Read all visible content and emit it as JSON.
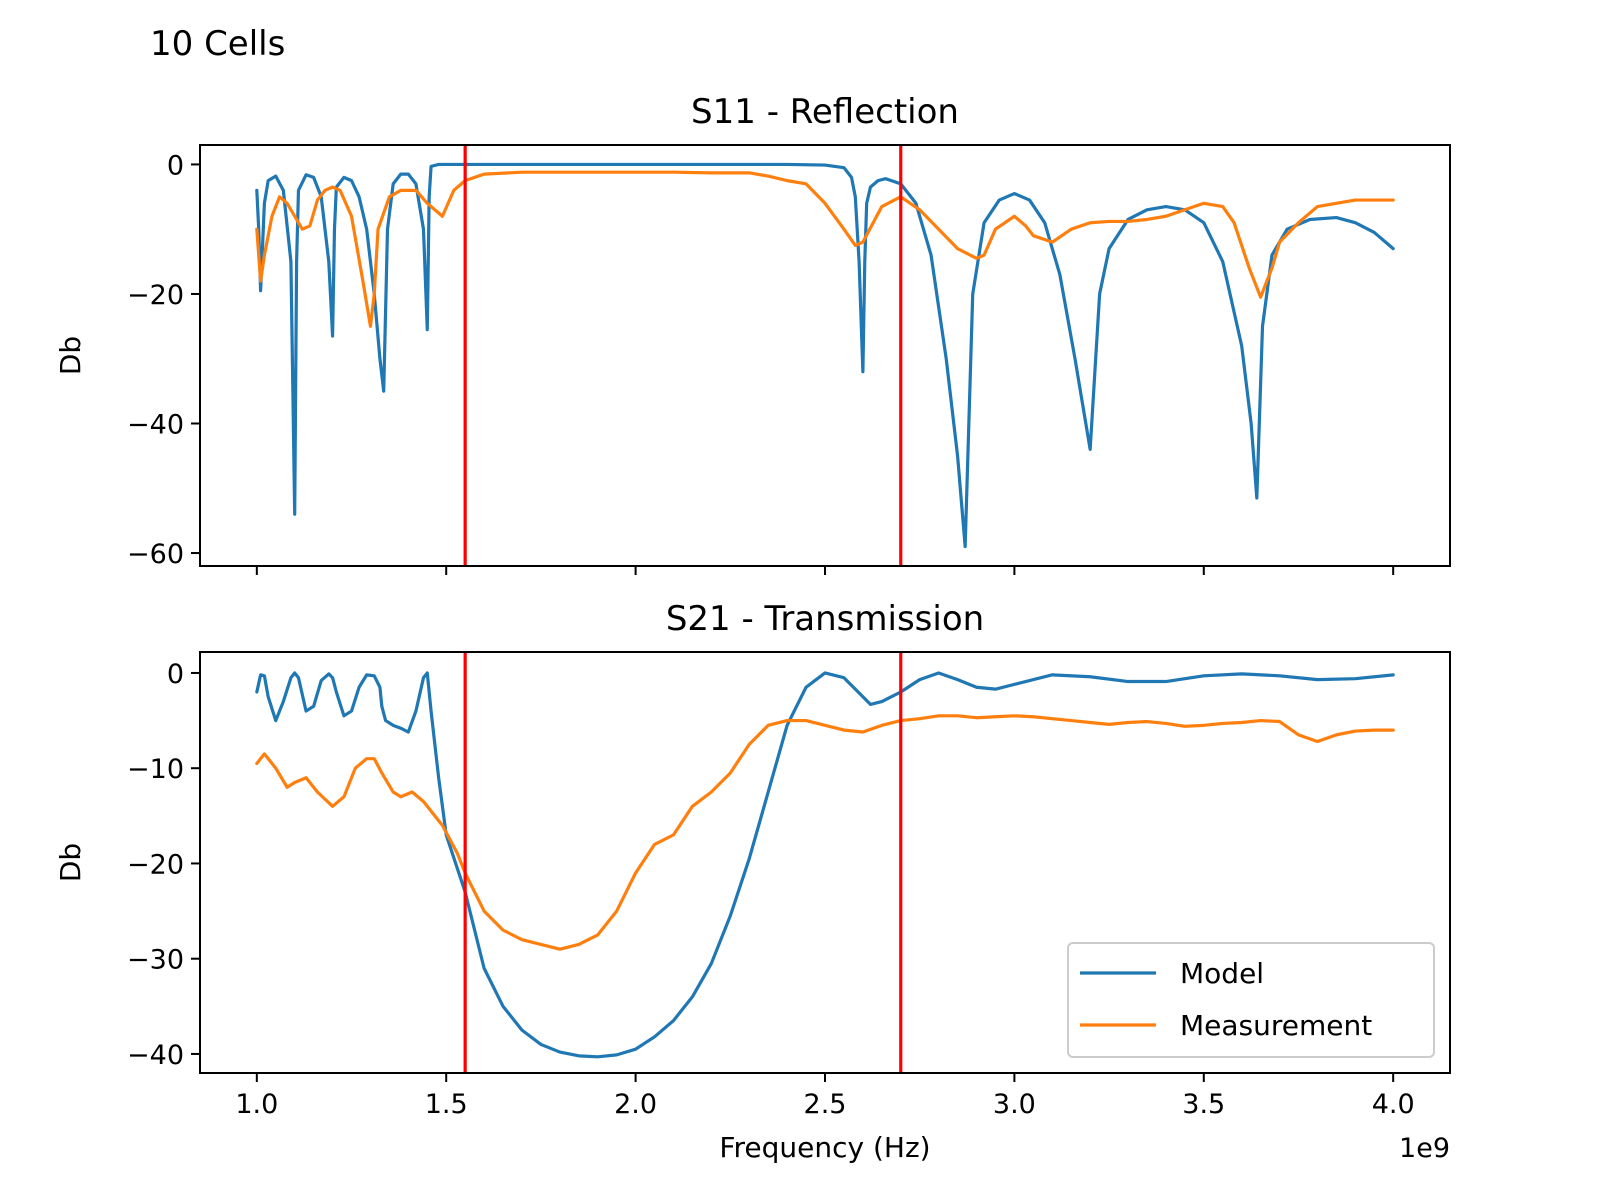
{
  "figure": {
    "title": "10 Cells"
  },
  "colors": {
    "model": "#1f77b4",
    "measurement": "#ff7f0e",
    "markers": "#ff0000",
    "frame": "#000000"
  },
  "chart_data": [
    {
      "type": "line",
      "title": "S11 - Reflection",
      "xlabel": "",
      "ylabel": "Db",
      "xlim": [
        850000000,
        4150000000
      ],
      "ylim": [
        -62,
        3
      ],
      "xticks": [
        1000000000,
        1500000000,
        2000000000,
        2500000000,
        3000000000,
        3500000000,
        4000000000
      ],
      "xtick_labels": [
        "",
        "",
        "",
        "",
        "",
        "",
        ""
      ],
      "yticks": [
        0,
        -20,
        -40,
        -60
      ],
      "ytick_labels": [
        "0",
        "−20",
        "−40",
        "−60"
      ],
      "vlines": [
        1550000000,
        2700000000
      ],
      "grid": false,
      "legend": null,
      "series": [
        {
          "name": "Model",
          "x_unit": 1000000000,
          "x": [
            1.0,
            1.005,
            1.01,
            1.02,
            1.03,
            1.05,
            1.07,
            1.09,
            1.1,
            1.105,
            1.11,
            1.13,
            1.15,
            1.17,
            1.19,
            1.2,
            1.205,
            1.21,
            1.23,
            1.25,
            1.27,
            1.29,
            1.31,
            1.325,
            1.335,
            1.345,
            1.36,
            1.38,
            1.4,
            1.42,
            1.44,
            1.45,
            1.455,
            1.46,
            1.48,
            1.5,
            1.6,
            1.8,
            2.0,
            2.2,
            2.4,
            2.5,
            2.55,
            2.57,
            2.58,
            2.59,
            2.6,
            2.605,
            2.61,
            2.62,
            2.64,
            2.66,
            2.7,
            2.74,
            2.78,
            2.82,
            2.85,
            2.87,
            2.89,
            2.92,
            2.96,
            3.0,
            3.04,
            3.08,
            3.12,
            3.16,
            3.2,
            3.225,
            3.25,
            3.3,
            3.35,
            3.4,
            3.45,
            3.5,
            3.55,
            3.6,
            3.625,
            3.64,
            3.655,
            3.68,
            3.72,
            3.78,
            3.85,
            3.9,
            3.95,
            4.0
          ],
          "y": [
            -4,
            -10,
            -19.5,
            -6,
            -2.5,
            -1.8,
            -4,
            -15,
            -54,
            -15,
            -4,
            -1.6,
            -2,
            -5,
            -15,
            -26.5,
            -10,
            -3.5,
            -2,
            -2.5,
            -5,
            -10,
            -20,
            -30,
            -35,
            -10,
            -3,
            -1.5,
            -1.5,
            -3,
            -10,
            -25.5,
            -5,
            -0.3,
            0,
            0,
            0,
            0,
            0,
            0,
            0,
            -0.1,
            -0.5,
            -2,
            -5,
            -15,
            -32,
            -15,
            -6,
            -3.5,
            -2.5,
            -2.2,
            -3,
            -6,
            -14,
            -30,
            -45,
            -59,
            -20,
            -9,
            -5.5,
            -4.5,
            -5.5,
            -9,
            -17,
            -30,
            -44,
            -20,
            -13,
            -8.5,
            -7,
            -6.5,
            -7,
            -9,
            -15,
            -28,
            -40,
            -51.5,
            -25,
            -14,
            -10,
            -8.5,
            -8.2,
            -9,
            -10.5,
            -13
          ]
        },
        {
          "name": "Measurement",
          "x_unit": 1000000000,
          "x": [
            1.0,
            1.01,
            1.02,
            1.04,
            1.06,
            1.08,
            1.1,
            1.12,
            1.14,
            1.16,
            1.18,
            1.2,
            1.22,
            1.25,
            1.28,
            1.3,
            1.31,
            1.32,
            1.35,
            1.38,
            1.42,
            1.45,
            1.49,
            1.52,
            1.55,
            1.6,
            1.7,
            1.8,
            1.9,
            2.0,
            2.1,
            2.2,
            2.3,
            2.35,
            2.4,
            2.45,
            2.5,
            2.55,
            2.58,
            2.6,
            2.65,
            2.7,
            2.75,
            2.8,
            2.85,
            2.9,
            2.92,
            2.95,
            3.0,
            3.03,
            3.05,
            3.1,
            3.15,
            3.2,
            3.25,
            3.3,
            3.35,
            3.4,
            3.45,
            3.5,
            3.55,
            3.58,
            3.62,
            3.65,
            3.68,
            3.7,
            3.75,
            3.8,
            3.85,
            3.9,
            3.95,
            4.0
          ],
          "y": [
            -10,
            -18,
            -14,
            -8,
            -5,
            -6,
            -8,
            -10,
            -9.5,
            -5.5,
            -4,
            -3.5,
            -4,
            -8,
            -18,
            -25,
            -20,
            -10,
            -5,
            -4,
            -4,
            -6,
            -8,
            -4,
            -2.5,
            -1.5,
            -1.2,
            -1.2,
            -1.2,
            -1.2,
            -1.2,
            -1.3,
            -1.3,
            -1.8,
            -2.5,
            -3,
            -6,
            -10,
            -12.5,
            -12,
            -6.5,
            -5,
            -7,
            -10,
            -13,
            -14.5,
            -14,
            -10,
            -8,
            -9.5,
            -11,
            -12,
            -10,
            -9,
            -8.8,
            -8.8,
            -8.5,
            -8,
            -7,
            -6,
            -6.5,
            -9,
            -16,
            -20.5,
            -16,
            -12,
            -9,
            -6.5,
            -6,
            -5.5,
            -5.5,
            -5.5
          ]
        }
      ]
    },
    {
      "type": "line",
      "title": "S21 - Transmission",
      "xlabel": "Frequency (Hz)",
      "ylabel": "Db",
      "x_offset_label": "1e9",
      "xlim": [
        850000000,
        4150000000
      ],
      "ylim": [
        -42,
        2.2
      ],
      "xticks": [
        1000000000,
        1500000000,
        2000000000,
        2500000000,
        3000000000,
        3500000000,
        4000000000
      ],
      "xtick_labels": [
        "1.0",
        "1.5",
        "2.0",
        "2.5",
        "3.0",
        "3.5",
        "4.0"
      ],
      "yticks": [
        0,
        -10,
        -20,
        -30,
        -40
      ],
      "ytick_labels": [
        "0",
        "−10",
        "−20",
        "−30",
        "−40"
      ],
      "vlines": [
        1550000000,
        2700000000
      ],
      "grid": false,
      "legend": "lower-right",
      "series": [
        {
          "name": "Model",
          "x_unit": 1000000000,
          "x": [
            1.0,
            1.01,
            1.02,
            1.03,
            1.05,
            1.07,
            1.09,
            1.1,
            1.11,
            1.13,
            1.15,
            1.17,
            1.19,
            1.2,
            1.21,
            1.23,
            1.25,
            1.27,
            1.29,
            1.31,
            1.325,
            1.33,
            1.34,
            1.36,
            1.38,
            1.4,
            1.42,
            1.44,
            1.45,
            1.46,
            1.48,
            1.5,
            1.55,
            1.6,
            1.65,
            1.7,
            1.75,
            1.8,
            1.85,
            1.9,
            1.95,
            2.0,
            2.05,
            2.1,
            2.15,
            2.2,
            2.25,
            2.3,
            2.35,
            2.4,
            2.45,
            2.5,
            2.55,
            2.6,
            2.62,
            2.65,
            2.7,
            2.75,
            2.8,
            2.85,
            2.9,
            2.95,
            3.0,
            3.1,
            3.2,
            3.3,
            3.4,
            3.5,
            3.6,
            3.7,
            3.8,
            3.9,
            4.0
          ],
          "y": [
            -2,
            -0.2,
            -0.3,
            -2.5,
            -5,
            -3,
            -0.5,
            0,
            -0.5,
            -4,
            -3.5,
            -0.8,
            -0.1,
            -0.5,
            -2,
            -4.5,
            -4,
            -1.5,
            -0.2,
            -0.3,
            -1.5,
            -3.5,
            -5,
            -5.5,
            -5.8,
            -6.2,
            -4,
            -0.5,
            0,
            -4,
            -11,
            -17,
            -23,
            -31,
            -35,
            -37.5,
            -39,
            -39.8,
            -40.2,
            -40.3,
            -40.1,
            -39.5,
            -38.2,
            -36.5,
            -34,
            -30.5,
            -25.5,
            -19.5,
            -12.5,
            -5.5,
            -1.5,
            0,
            -0.5,
            -2.5,
            -3.3,
            -3,
            -2,
            -0.7,
            0,
            -0.7,
            -1.5,
            -1.7,
            -1.2,
            -0.2,
            -0.4,
            -0.9,
            -0.9,
            -0.3,
            -0.1,
            -0.3,
            -0.7,
            -0.6,
            -0.2
          ]
        },
        {
          "name": "Measurement",
          "x_unit": 1000000000,
          "x": [
            1.0,
            1.02,
            1.05,
            1.08,
            1.1,
            1.13,
            1.16,
            1.2,
            1.23,
            1.26,
            1.29,
            1.31,
            1.33,
            1.36,
            1.38,
            1.41,
            1.44,
            1.47,
            1.49,
            1.51,
            1.53,
            1.55,
            1.6,
            1.65,
            1.7,
            1.75,
            1.8,
            1.85,
            1.9,
            1.95,
            2.0,
            2.05,
            2.1,
            2.15,
            2.2,
            2.25,
            2.3,
            2.35,
            2.4,
            2.45,
            2.5,
            2.55,
            2.6,
            2.65,
            2.7,
            2.75,
            2.8,
            2.85,
            2.9,
            2.95,
            3.0,
            3.05,
            3.1,
            3.15,
            3.2,
            3.25,
            3.3,
            3.35,
            3.4,
            3.45,
            3.5,
            3.55,
            3.6,
            3.65,
            3.7,
            3.75,
            3.8,
            3.85,
            3.9,
            3.95,
            4.0
          ],
          "y": [
            -9.5,
            -8.5,
            -10,
            -12,
            -11.5,
            -11,
            -12.5,
            -14,
            -13,
            -10,
            -9,
            -9,
            -10.5,
            -12.5,
            -13,
            -12.5,
            -13.5,
            -15,
            -16,
            -17.5,
            -19,
            -21,
            -25,
            -27,
            -28,
            -28.5,
            -29,
            -28.5,
            -27.5,
            -25,
            -21,
            -18,
            -17,
            -14,
            -12.5,
            -10.5,
            -7.5,
            -5.5,
            -5,
            -5,
            -5.5,
            -6,
            -6.2,
            -5.5,
            -5,
            -4.8,
            -4.5,
            -4.5,
            -4.7,
            -4.6,
            -4.5,
            -4.6,
            -4.8,
            -5,
            -5.2,
            -5.4,
            -5.2,
            -5.1,
            -5.3,
            -5.6,
            -5.5,
            -5.3,
            -5.2,
            -5,
            -5.1,
            -6.5,
            -7.2,
            -6.5,
            -6.1,
            -6,
            -6
          ]
        }
      ]
    }
  ]
}
